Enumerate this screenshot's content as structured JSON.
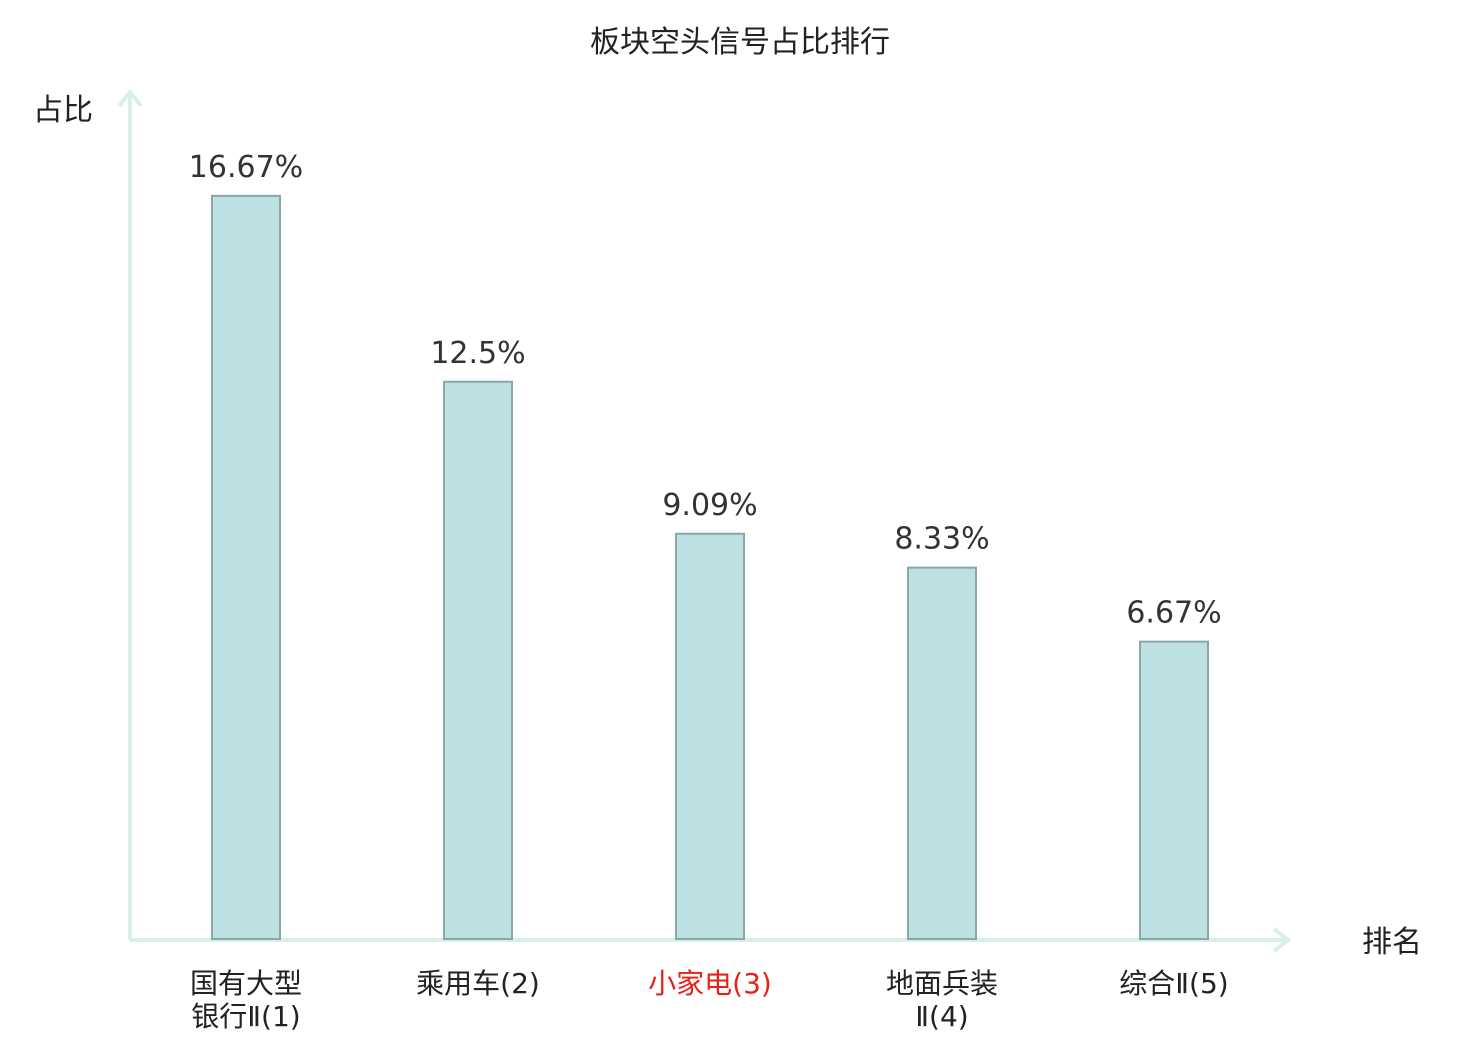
{
  "chart_data": {
    "type": "bar",
    "title": "板块空头信号占比排行",
    "ylabel": "占比",
    "xlabel": "排名",
    "categories": [
      "国有大型银行Ⅱ(1)",
      "乘用车(2)",
      "小家电(3)",
      "地面兵装Ⅱ(4)",
      "综合Ⅱ(5)"
    ],
    "category_lines": [
      [
        "国有大型",
        "银行Ⅱ(1)"
      ],
      [
        "乘用车(2)"
      ],
      [
        "小家电(3)"
      ],
      [
        "地面兵装",
        "Ⅱ(4)"
      ],
      [
        "综合Ⅱ(5)"
      ]
    ],
    "values": [
      16.67,
      12.5,
      9.09,
      8.33,
      6.67
    ],
    "value_labels": [
      "16.67%",
      "12.5%",
      "9.09%",
      "8.33%",
      "6.67%"
    ],
    "highlight_index": 2,
    "ylim": [
      0,
      19
    ],
    "grid": false,
    "colors": {
      "bar_fill": "#bde0e2",
      "bar_stroke": "#8aa6a7",
      "axis": "#d8efec",
      "highlight": "#e8201a",
      "text": "#222222"
    }
  }
}
